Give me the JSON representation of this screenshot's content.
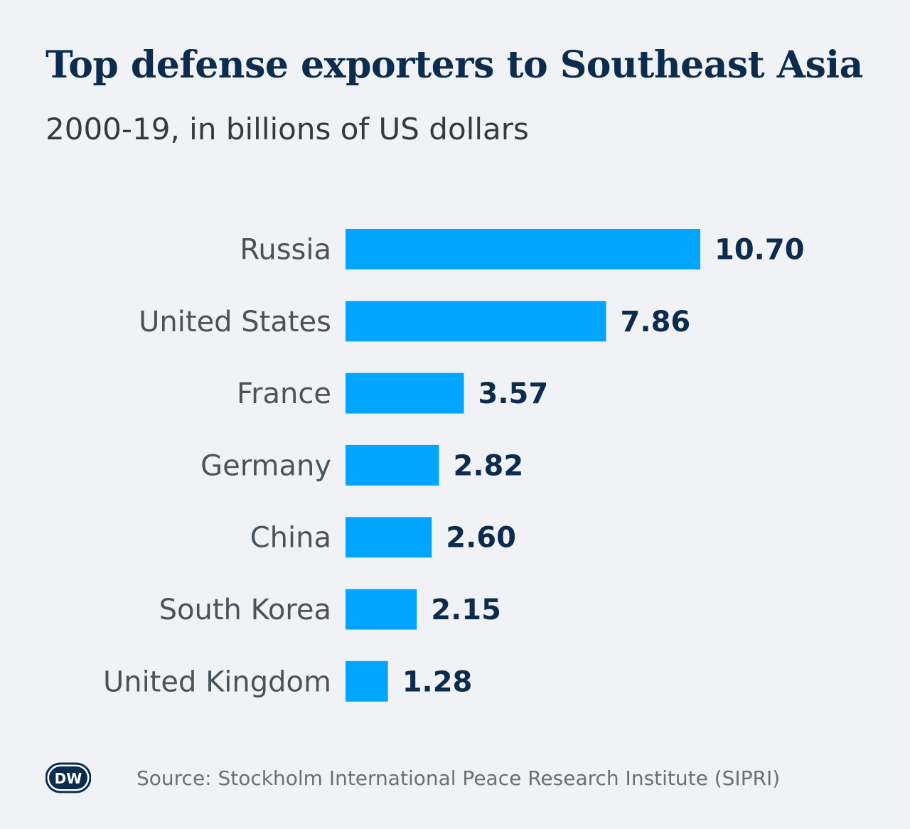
{
  "logo_text": "DW",
  "colors": {
    "background": "#f0f2f5",
    "bar": "#00a5ff",
    "title": "#0c2c4d",
    "value_label": "#0c2c4d",
    "category_label": "#4a525c",
    "source": "#6a7078"
  },
  "chart_data": {
    "type": "bar",
    "orientation": "horizontal",
    "title": "Top defense exporters to Southeast Asia",
    "subtitle": "2000-19, in billions of US dollars",
    "categories": [
      "Russia",
      "United States",
      "France",
      "Germany",
      "China",
      "South Korea",
      "United Kingdom"
    ],
    "values": [
      10.7,
      7.86,
      3.57,
      2.82,
      2.6,
      2.15,
      1.28
    ],
    "value_labels": [
      "10.70",
      "7.86",
      "3.57",
      "2.82",
      "2.60",
      "2.15",
      "1.28"
    ],
    "xlabel": "",
    "ylabel": "",
    "xlim": [
      0,
      10.7
    ],
    "grid": false,
    "legend": "none",
    "source": "Source: Stockholm International Peace Research Institute (SIPRI)"
  }
}
